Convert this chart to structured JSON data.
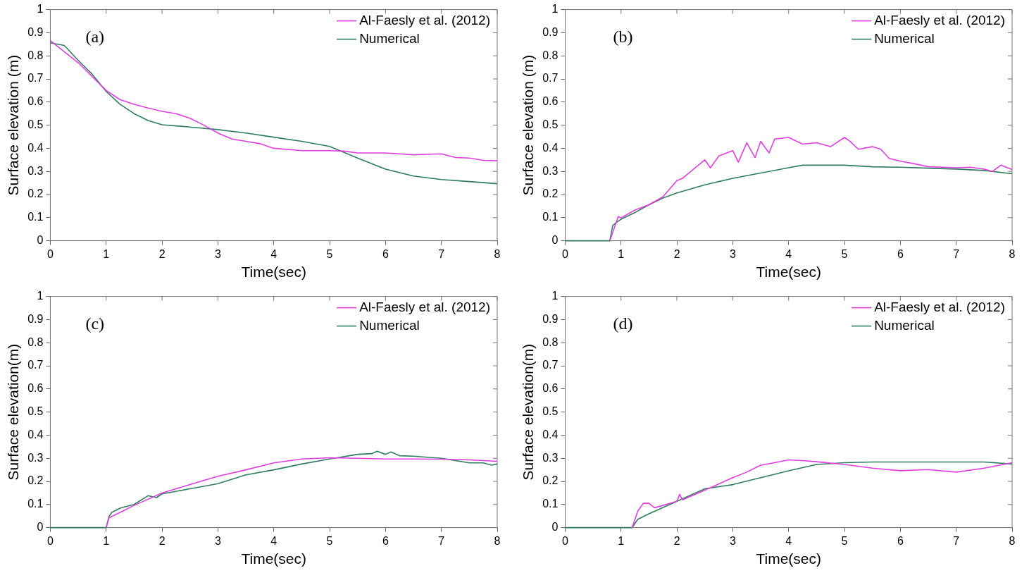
{
  "chart_data": [
    {
      "type": "line",
      "annotations": [
        "(a)"
      ],
      "xlabel": "Time(sec)",
      "ylabel": "Surface elevation (m)",
      "xlim": [
        0,
        8
      ],
      "ylim": [
        0,
        1
      ],
      "xticks": [
        0,
        1,
        2,
        3,
        4,
        5,
        6,
        7,
        8
      ],
      "yticks": [
        0,
        0.1,
        0.2,
        0.3,
        0.4,
        0.5,
        0.6,
        0.7,
        0.8,
        0.9,
        1
      ],
      "grid": false,
      "legend": "top right",
      "marker": "none",
      "line_style": "solid",
      "series": [
        {
          "name": "Al-Faesly et al. (2012)",
          "color": "#e03ee0",
          "x": [
            0,
            0.5,
            1,
            1.25,
            1.5,
            1.75,
            2,
            2.25,
            2.5,
            2.75,
            3,
            3.25,
            3.5,
            3.75,
            4,
            4.5,
            5,
            5.25,
            5.5,
            6,
            6.5,
            7,
            7.25,
            7.5,
            7.75,
            8
          ],
          "values": [
            0.866,
            0.77,
            0.65,
            0.61,
            0.59,
            0.574,
            0.56,
            0.55,
            0.53,
            0.5,
            0.466,
            0.44,
            0.43,
            0.42,
            0.4,
            0.39,
            0.39,
            0.388,
            0.38,
            0.38,
            0.372,
            0.376,
            0.36,
            0.358,
            0.348,
            0.346
          ]
        },
        {
          "name": "Numerical",
          "color": "#2e7d5e",
          "x": [
            0,
            0.25,
            0.5,
            0.75,
            1,
            1.25,
            1.5,
            1.75,
            2,
            2.5,
            3,
            3.5,
            4,
            4.5,
            5,
            5.5,
            6,
            6.5,
            7,
            7.5,
            8
          ],
          "values": [
            0.856,
            0.845,
            0.78,
            0.72,
            0.646,
            0.59,
            0.55,
            0.52,
            0.502,
            0.492,
            0.481,
            0.466,
            0.448,
            0.43,
            0.408,
            0.358,
            0.31,
            0.28,
            0.265,
            0.256,
            0.247
          ]
        }
      ]
    },
    {
      "type": "line",
      "annotations": [
        "(b)"
      ],
      "xlabel": "Time(sec)",
      "ylabel": "Surface elevation (m)",
      "xlim": [
        0,
        8
      ],
      "ylim": [
        0,
        1
      ],
      "xticks": [
        0,
        1,
        2,
        3,
        4,
        5,
        6,
        7,
        8
      ],
      "yticks": [
        0,
        0.1,
        0.2,
        0.3,
        0.4,
        0.5,
        0.6,
        0.7,
        0.8,
        0.9,
        1
      ],
      "grid": false,
      "legend": "top right",
      "marker": "none",
      "line_style": "solid",
      "series": [
        {
          "name": "Al-Faesly et al. (2012)",
          "color": "#e03ee0",
          "x": [
            0.8,
            0.9,
            0.95,
            1,
            1.25,
            1.5,
            1.75,
            2,
            2.1,
            2.25,
            2.5,
            2.6,
            2.75,
            3,
            3.1,
            3.25,
            3.4,
            3.5,
            3.65,
            3.75,
            4,
            4.25,
            4.5,
            4.75,
            5,
            5.1,
            5.25,
            5.5,
            5.65,
            5.8,
            6,
            6.25,
            6.5,
            6.75,
            7,
            7.25,
            7.5,
            7.65,
            7.8,
            8
          ],
          "values": [
            0,
            0.07,
            0.105,
            0.099,
            0.133,
            0.156,
            0.19,
            0.26,
            0.27,
            0.3,
            0.35,
            0.315,
            0.367,
            0.39,
            0.34,
            0.424,
            0.36,
            0.43,
            0.38,
            0.44,
            0.447,
            0.418,
            0.424,
            0.407,
            0.447,
            0.43,
            0.396,
            0.407,
            0.396,
            0.356,
            0.344,
            0.333,
            0.32,
            0.318,
            0.316,
            0.318,
            0.31,
            0.3,
            0.327,
            0.308
          ]
        },
        {
          "name": "Numerical",
          "color": "#2e7d5e",
          "x": [
            0,
            0.8,
            0.85,
            0.9,
            1,
            1.25,
            1.5,
            1.75,
            2,
            2.5,
            3,
            3.5,
            4,
            4.25,
            4.5,
            5,
            5.5,
            6,
            6.5,
            7,
            7.5,
            8
          ],
          "values": [
            0,
            0,
            0.065,
            0.076,
            0.093,
            0.122,
            0.156,
            0.185,
            0.207,
            0.242,
            0.27,
            0.293,
            0.316,
            0.327,
            0.327,
            0.327,
            0.32,
            0.318,
            0.314,
            0.31,
            0.304,
            0.29
          ]
        }
      ]
    },
    {
      "type": "line",
      "annotations": [
        "(c)"
      ],
      "xlabel": "Time(sec)",
      "ylabel": "Surface elevation(m)",
      "xlim": [
        0,
        8
      ],
      "ylim": [
        0,
        1
      ],
      "xticks": [
        0,
        1,
        2,
        3,
        4,
        5,
        6,
        7,
        8
      ],
      "yticks": [
        0,
        0.1,
        0.2,
        0.3,
        0.4,
        0.5,
        0.6,
        0.7,
        0.8,
        0.9,
        1
      ],
      "grid": false,
      "legend": "top right",
      "marker": "none",
      "line_style": "solid",
      "series": [
        {
          "name": "Al-Faesly et al. (2012)",
          "color": "#e03ee0",
          "x": [
            1,
            1.05,
            1.25,
            1.5,
            2,
            2.5,
            3,
            3.5,
            4,
            4.5,
            5,
            5.5,
            6,
            6.5,
            7,
            7.5,
            8
          ],
          "values": [
            0,
            0.042,
            0.066,
            0.096,
            0.15,
            0.186,
            0.222,
            0.25,
            0.28,
            0.297,
            0.302,
            0.3,
            0.297,
            0.297,
            0.296,
            0.293,
            0.287
          ]
        },
        {
          "name": "Numerical",
          "color": "#2e7d5e",
          "x": [
            0,
            1,
            1.05,
            1.1,
            1.25,
            1.5,
            1.75,
            1.9,
            2,
            2.5,
            3,
            3.5,
            4,
            4.5,
            5,
            5.5,
            5.75,
            5.85,
            6,
            6.1,
            6.25,
            6.5,
            7,
            7.5,
            7.75,
            7.9,
            8
          ],
          "values": [
            0,
            0,
            0.048,
            0.066,
            0.084,
            0.1,
            0.138,
            0.13,
            0.146,
            0.168,
            0.19,
            0.228,
            0.25,
            0.275,
            0.297,
            0.317,
            0.32,
            0.33,
            0.317,
            0.327,
            0.311,
            0.309,
            0.3,
            0.28,
            0.28,
            0.27,
            0.275
          ]
        }
      ]
    },
    {
      "type": "line",
      "annotations": [
        "(d)"
      ],
      "xlabel": "Time(sec)",
      "ylabel": "Surface elevation(m)",
      "xlim": [
        0,
        8
      ],
      "ylim": [
        0,
        1
      ],
      "xticks": [
        0,
        1,
        2,
        3,
        4,
        5,
        6,
        7,
        8
      ],
      "yticks": [
        0,
        0.1,
        0.2,
        0.3,
        0.4,
        0.5,
        0.6,
        0.7,
        0.8,
        0.9,
        1
      ],
      "grid": false,
      "legend": "top right",
      "marker": "none",
      "line_style": "solid",
      "series": [
        {
          "name": "Al-Faesly et al. (2012)",
          "color": "#e03ee0",
          "x": [
            1.2,
            1.3,
            1.4,
            1.5,
            1.6,
            1.75,
            2,
            2.05,
            2.1,
            2.5,
            3,
            3.25,
            3.5,
            3.75,
            4,
            4.25,
            4.5,
            5,
            5.5,
            6,
            6.5,
            7,
            7.5,
            8
          ],
          "values": [
            0,
            0.072,
            0.105,
            0.105,
            0.086,
            0.096,
            0.114,
            0.144,
            0.12,
            0.162,
            0.216,
            0.24,
            0.27,
            0.281,
            0.293,
            0.29,
            0.285,
            0.273,
            0.257,
            0.246,
            0.251,
            0.24,
            0.257,
            0.281
          ]
        },
        {
          "name": "Numerical",
          "color": "#2e7d5e",
          "x": [
            0,
            1.2,
            1.3,
            1.5,
            2,
            2.5,
            3,
            3.5,
            4,
            4.5,
            5,
            5.5,
            6,
            7,
            7.5,
            8
          ],
          "values": [
            0,
            0,
            0.036,
            0.06,
            0.114,
            0.168,
            0.186,
            0.216,
            0.246,
            0.273,
            0.281,
            0.284,
            0.284,
            0.284,
            0.284,
            0.275
          ]
        }
      ]
    }
  ]
}
